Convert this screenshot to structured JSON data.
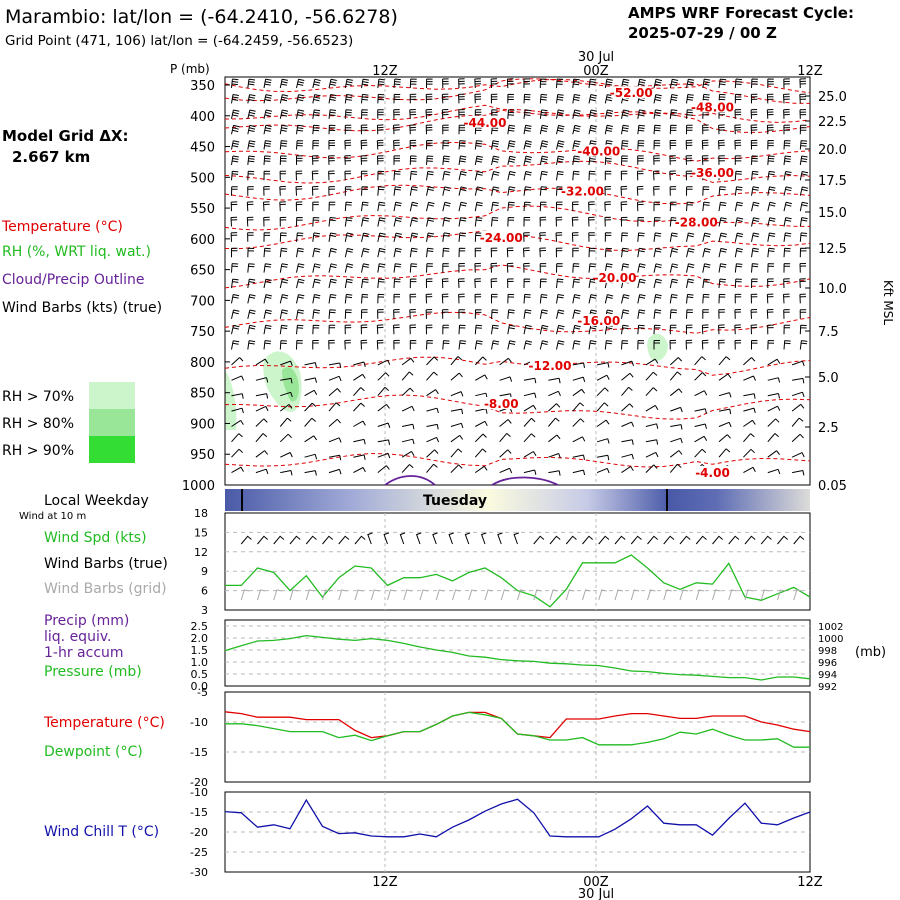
{
  "header": {
    "title": "Marambio:  lat/lon = (-64.2410, -56.6278)",
    "subtitle": "Grid Point (471, 106) lat/lon = (-64.2459, -56.6523)",
    "cycle_line1": "AMPS WRF Forecast Cycle:",
    "cycle_line2": "2025-07-29 / 00  Z"
  },
  "legend": {
    "model_grid_line1": "Model Grid ΔX:",
    "model_grid_line2": "2.667 km",
    "temperature": "Temperature (°C)",
    "rh": "RH (%, WRT liq. wat.)",
    "cloud": "Cloud/Precip Outline",
    "wind_barbs": "Wind Barbs (kts) (true)",
    "rh70": "RH > 70%",
    "rh80": "RH > 80%",
    "rh90": "RH > 90%",
    "local_weekday": "Local Weekday",
    "wind_at_10m": "Wind at 10 m",
    "wind_spd": "Wind Spd (kts)",
    "wind_barbs_true": "Wind Barbs (true)",
    "wind_barbs_grid": "Wind Barbs (grid)",
    "precip1": "Precip (mm)",
    "precip2": "liq. equiv.",
    "precip3": "1-hr accum",
    "pressure": "Pressure (mb)",
    "pressure_unit": "(mb)",
    "temp2": "Temperature (°C)",
    "dewpoint": "Dewpoint (°C)",
    "windchill": "Wind Chill T (°C)"
  },
  "colors": {
    "temperature": "#e00000",
    "rh": "#22bb22",
    "cloud": "#662299",
    "barbs_true": "#000000",
    "barbs_grid": "#aaaaaa",
    "windchill": "#1111aa",
    "rh70": "#ccf5cc",
    "rh80": "#99e699",
    "rh90": "#33dd33"
  },
  "time_axis": {
    "top_labels": [
      "12Z",
      "00Z",
      "12Z"
    ],
    "date_label": "30 Jul",
    "weekday": "Tuesday"
  },
  "chart_data": [
    {
      "type": "line",
      "name": "cross-section",
      "ylabel": "P (mb)",
      "y2label": "Kft MSL",
      "y_ticks": [
        350,
        400,
        450,
        500,
        550,
        600,
        650,
        700,
        750,
        800,
        850,
        900,
        950,
        1000
      ],
      "y2_ticks": [
        "25.0",
        "22.5",
        "20.0",
        "17.5",
        "15.0",
        "12.5",
        "10.0",
        "7.5",
        "5.0",
        "2.5",
        "0.05"
      ],
      "contour_labels": [
        {
          "text": "-52.00",
          "p": 365,
          "t": 25
        },
        {
          "text": "-48.00",
          "p": 388,
          "t": 30
        },
        {
          "text": "-44.00",
          "p": 413,
          "t": 16
        },
        {
          "text": "-40.00",
          "p": 460,
          "t": 23
        },
        {
          "text": "-36.00",
          "p": 495,
          "t": 30
        },
        {
          "text": "-32.00",
          "p": 525,
          "t": 22
        },
        {
          "text": "-28.00",
          "p": 575,
          "t": 29
        },
        {
          "text": "-24.00",
          "p": 600,
          "t": 17
        },
        {
          "text": "-20.00",
          "p": 665,
          "t": 24
        },
        {
          "text": "-16.00",
          "p": 735,
          "t": 23
        },
        {
          "text": "-12.00",
          "p": 808,
          "t": 20
        },
        {
          "text": "-8.00",
          "p": 870,
          "t": 17
        },
        {
          "text": "-4.00",
          "p": 982,
          "t": 30
        }
      ]
    },
    {
      "type": "line",
      "name": "wind speed",
      "ylim": [
        3,
        18
      ],
      "y_ticks": [
        3,
        6,
        9,
        12,
        15,
        18
      ],
      "x": [
        0,
        1,
        2,
        3,
        4,
        5,
        6,
        7,
        8,
        9,
        10,
        11,
        12,
        13,
        14,
        15,
        16,
        17,
        18,
        19,
        20,
        21,
        22,
        23,
        24,
        25,
        26,
        27,
        28,
        29,
        30,
        31,
        32,
        33,
        34,
        35,
        36
      ],
      "values": [
        6.8,
        6.8,
        9.5,
        8.8,
        6.0,
        8.3,
        5.0,
        8.0,
        9.8,
        9.5,
        6.8,
        8.0,
        8.0,
        8.5,
        7.5,
        8.8,
        9.5,
        8.0,
        6.0,
        5.2,
        3.5,
        6.2,
        10.3,
        10.3,
        10.3,
        11.5,
        9.5,
        7.2,
        6.2,
        7.2,
        7.0,
        10.2,
        5.0,
        4.5,
        5.5,
        6.5,
        5.0
      ]
    },
    {
      "type": "line",
      "name": "pressure",
      "y_ticks": [
        "0.0",
        "0.5",
        "1.0",
        "1.5",
        "2.0",
        "2.5"
      ],
      "y2_ticks": [
        992,
        994,
        996,
        998,
        1000,
        1002
      ],
      "y2lim": [
        992,
        1003
      ],
      "x": [
        0,
        1,
        2,
        3,
        4,
        5,
        6,
        7,
        8,
        9,
        10,
        11,
        12,
        13,
        14,
        15,
        16,
        17,
        18,
        19,
        20,
        21,
        22,
        23,
        24,
        25,
        26,
        27,
        28,
        29,
        30,
        31,
        32,
        33,
        34,
        35,
        36
      ],
      "values": [
        997.9,
        998.7,
        999.5,
        999.6,
        999.9,
        1000.4,
        1000.1,
        999.8,
        999.6,
        999.9,
        999.6,
        999.1,
        998.5,
        998.0,
        997.6,
        997.0,
        996.8,
        996.4,
        996.2,
        996.1,
        995.8,
        995.7,
        995.5,
        995.4,
        995.0,
        994.5,
        994.4,
        994.1,
        993.9,
        993.8,
        993.6,
        993.4,
        993.4,
        993.0,
        993.5,
        993.5,
        993.2
      ]
    },
    {
      "type": "line",
      "name": "temperature/dewpoint",
      "ylim": [
        -20,
        -5
      ],
      "y_ticks": [
        -5,
        -10,
        -15,
        -20
      ],
      "x": [
        0,
        1,
        2,
        3,
        4,
        5,
        6,
        7,
        8,
        9,
        10,
        11,
        12,
        13,
        14,
        15,
        16,
        17,
        18,
        19,
        20,
        21,
        22,
        23,
        24,
        25,
        26,
        27,
        28,
        29,
        30,
        31,
        32,
        33,
        34,
        35,
        36
      ],
      "series": [
        {
          "values": [
            -8.3,
            -8.6,
            -9.2,
            -9.2,
            -9.2,
            -9.6,
            -9.6,
            -9.6,
            -11.4,
            -12.6,
            -12.3,
            -11.6,
            -11.6,
            -10.4,
            -9.0,
            -8.4,
            -8.4,
            -9.4,
            -12.0,
            -12.3,
            -12.6,
            -9.5,
            -9.5,
            -9.5,
            -9.0,
            -8.6,
            -8.6,
            -9.0,
            -9.4,
            -9.4,
            -9.0,
            -9.0,
            -9.0,
            -10.0,
            -10.5,
            -11.2,
            -11.6
          ]
        },
        {
          "values": [
            -10.3,
            -10.3,
            -10.6,
            -11.1,
            -11.6,
            -11.6,
            -11.6,
            -12.6,
            -12.2,
            -13.1,
            -12.3,
            -11.6,
            -11.6,
            -10.4,
            -9.0,
            -8.4,
            -8.8,
            -9.4,
            -12.0,
            -12.3,
            -13.0,
            -13.0,
            -12.6,
            -13.8,
            -13.8,
            -13.8,
            -13.4,
            -12.8,
            -11.7,
            -12.0,
            -11.2,
            -12.2,
            -13.0,
            -13.0,
            -12.8,
            -14.2,
            -14.2
          ]
        }
      ]
    },
    {
      "type": "line",
      "name": "wind chill",
      "ylim": [
        -30,
        -10
      ],
      "y_ticks": [
        -10,
        -15,
        -20,
        -25,
        -30
      ],
      "x": [
        0,
        1,
        2,
        3,
        4,
        5,
        6,
        7,
        8,
        9,
        10,
        11,
        12,
        13,
        14,
        15,
        16,
        17,
        18,
        19,
        20,
        21,
        22,
        23,
        24,
        25,
        26,
        27,
        28,
        29,
        30,
        31,
        32,
        33,
        34,
        35,
        36
      ],
      "values": [
        -14.9,
        -15.2,
        -18.8,
        -18.2,
        -19.2,
        -12.0,
        -18.6,
        -20.4,
        -20.2,
        -21.0,
        -21.2,
        -21.2,
        -20.5,
        -21.2,
        -18.8,
        -17.0,
        -14.8,
        -13.0,
        -11.8,
        -15.2,
        -21.0,
        -21.2,
        -21.2,
        -21.2,
        -19.3,
        -16.7,
        -13.5,
        -17.8,
        -18.2,
        -18.2,
        -20.8,
        -16.6,
        -12.8,
        -17.8,
        -18.2,
        -16.5,
        -15.0
      ]
    }
  ]
}
